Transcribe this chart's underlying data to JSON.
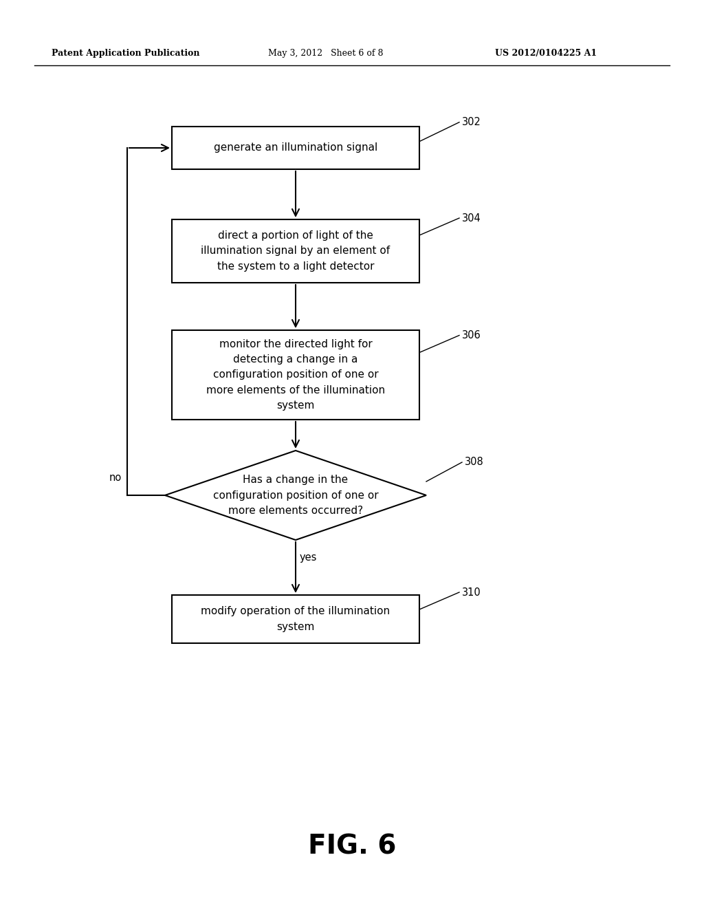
{
  "header_left": "Patent Application Publication",
  "header_center": "May 3, 2012   Sheet 6 of 8",
  "header_right": "US 2012/0104225 A1",
  "fig_label": "FIG. 6",
  "background_color": "#ffffff",
  "box_edge_color": "#000000",
  "text_color": "#000000",
  "arrow_color": "#000000",
  "box302_label": "generate an illumination signal",
  "box304_label": "direct a portion of light of the\nillumination signal by an element of\nthe system to a light detector",
  "box306_label": "monitor the directed light for\ndetecting a change in a\nconfiguration position of one or\nmore elements of the illumination\nsystem",
  "box308_label": "Has a change in the\nconfiguration position of one or\nmore elements occurred?",
  "box310_label": "modify operation of the illumination\nsystem",
  "ref302": "302",
  "ref304": "304",
  "ref306": "306",
  "ref308": "308",
  "ref310": "310"
}
